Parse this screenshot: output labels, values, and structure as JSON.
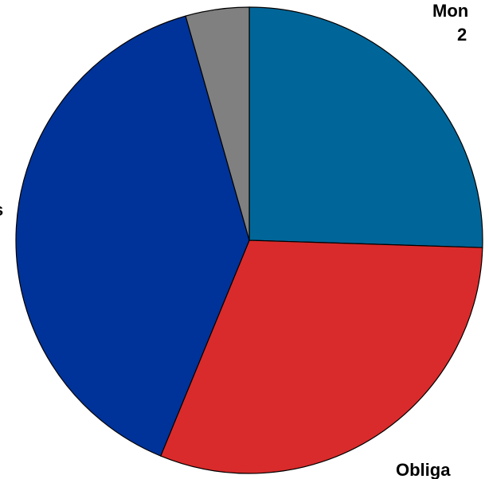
{
  "chart_data": {
    "type": "pie",
    "categories": [
      "Mon",
      "Obliga",
      "s",
      null
    ],
    "values": [
      25.5,
      30.7,
      39.4,
      4.4
    ],
    "colors": [
      "#006699",
      "#d92b2b",
      "#003399",
      "#808080"
    ],
    "annotations": [
      "2"
    ]
  }
}
